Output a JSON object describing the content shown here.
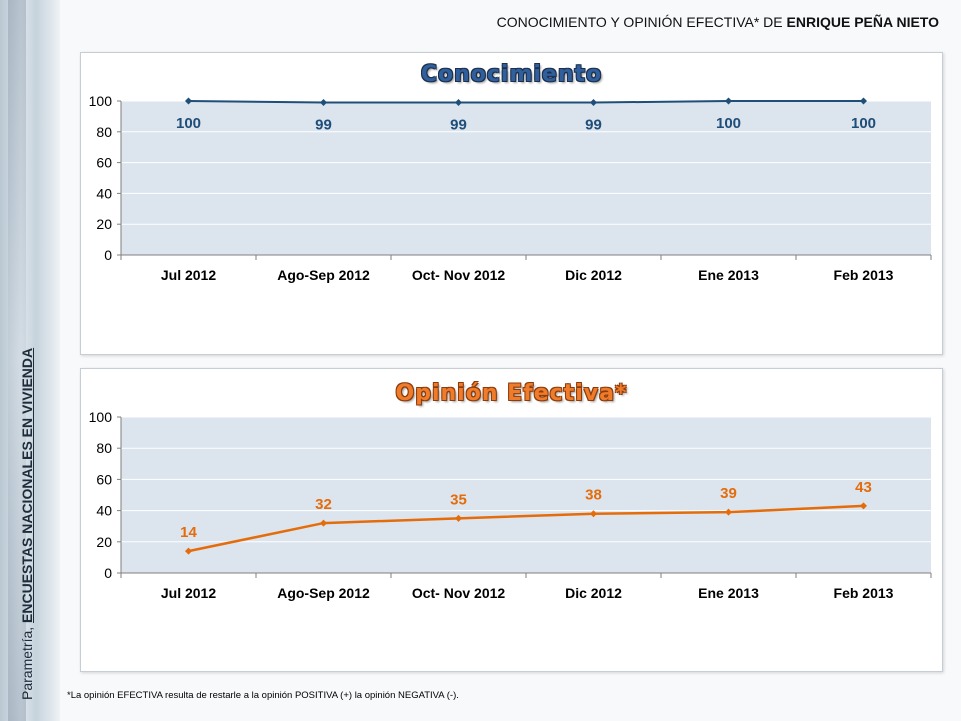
{
  "header": {
    "title_prefix": "CONOCIMIENTO Y OPINIÓN EFECTIVA* DE",
    "title_name": "ENRIQUE PEÑA NIETO"
  },
  "side_caption": {
    "prefix": "Parametría,",
    "emphasis": "ENCUESTAS NACIONALES EN VIVIENDA"
  },
  "footnote": "*La opinión EFECTIVA resulta de restarle a la opinión POSITIVA (+) la opinión NEGATIVA (-).",
  "colors": {
    "blue_series": "#1f4e79",
    "orange_series": "#e46c0a",
    "plot_bg": "#dce4ee"
  },
  "chart_data": [
    {
      "type": "line",
      "title": "Conocimiento",
      "categories": [
        "Jul 2012",
        "Ago-Sep 2012",
        "Oct- Nov 2012",
        "Dic 2012",
        "Ene 2013",
        "Feb 2013"
      ],
      "series": [
        {
          "values": [
            100,
            99,
            99,
            99,
            100,
            100
          ]
        }
      ],
      "yticks": [
        0,
        20,
        40,
        60,
        80,
        100
      ],
      "ylim": [
        0,
        100
      ],
      "grid": true,
      "legend": "none"
    },
    {
      "type": "line",
      "title": "Opinión Efectiva*",
      "categories": [
        "Jul 2012",
        "Ago-Sep 2012",
        "Oct- Nov 2012",
        "Dic 2012",
        "Ene 2013",
        "Feb 2013"
      ],
      "series": [
        {
          "values": [
            14,
            32,
            35,
            38,
            39,
            43
          ]
        }
      ],
      "yticks": [
        0,
        20,
        40,
        60,
        80,
        100
      ],
      "ylim": [
        0,
        100
      ],
      "grid": true,
      "legend": "none"
    }
  ]
}
